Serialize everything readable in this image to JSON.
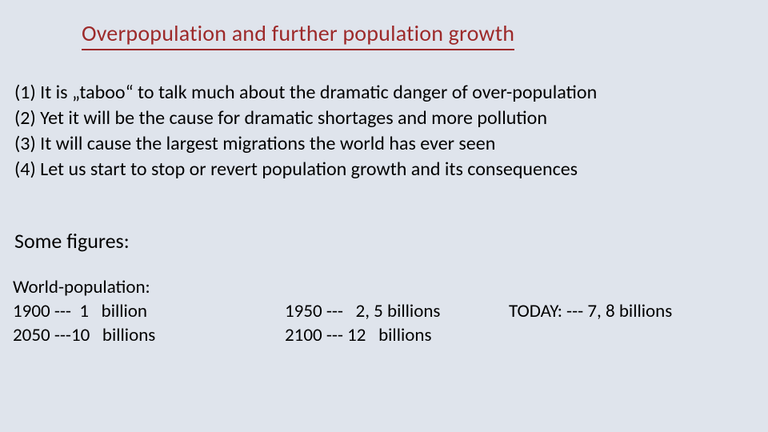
{
  "background_color": "#dfe4ec",
  "title": {
    "text": "Overpopulation and further population growth",
    "color": "#9d2a2a",
    "underline_color": "#9d2a2a",
    "fontsize": 28
  },
  "points": {
    "fontsize": 24,
    "items": [
      "(1) It is „taboo“ to talk much about the dramatic danger of over-population",
      "(2) Yet it will be the cause for dramatic shortages and more pollution",
      "(3) It will cause the largest migrations the world has ever seen",
      "(4) Let us start to stop or revert population growth and its consequences"
    ]
  },
  "subheading": {
    "text": "Some figures:",
    "fontsize": 26
  },
  "figures": {
    "fontsize": 23,
    "col1_label": "World-population:",
    "col1_line1": "1900 ---  1   billion",
    "col1_line2": "2050 ---10   billions",
    "col2_line1": "1950 ---   2, 5 billions",
    "col2_line2": "2100 --- 12   billions",
    "col3_line1": "TODAY: --- 7, 8 billions"
  }
}
